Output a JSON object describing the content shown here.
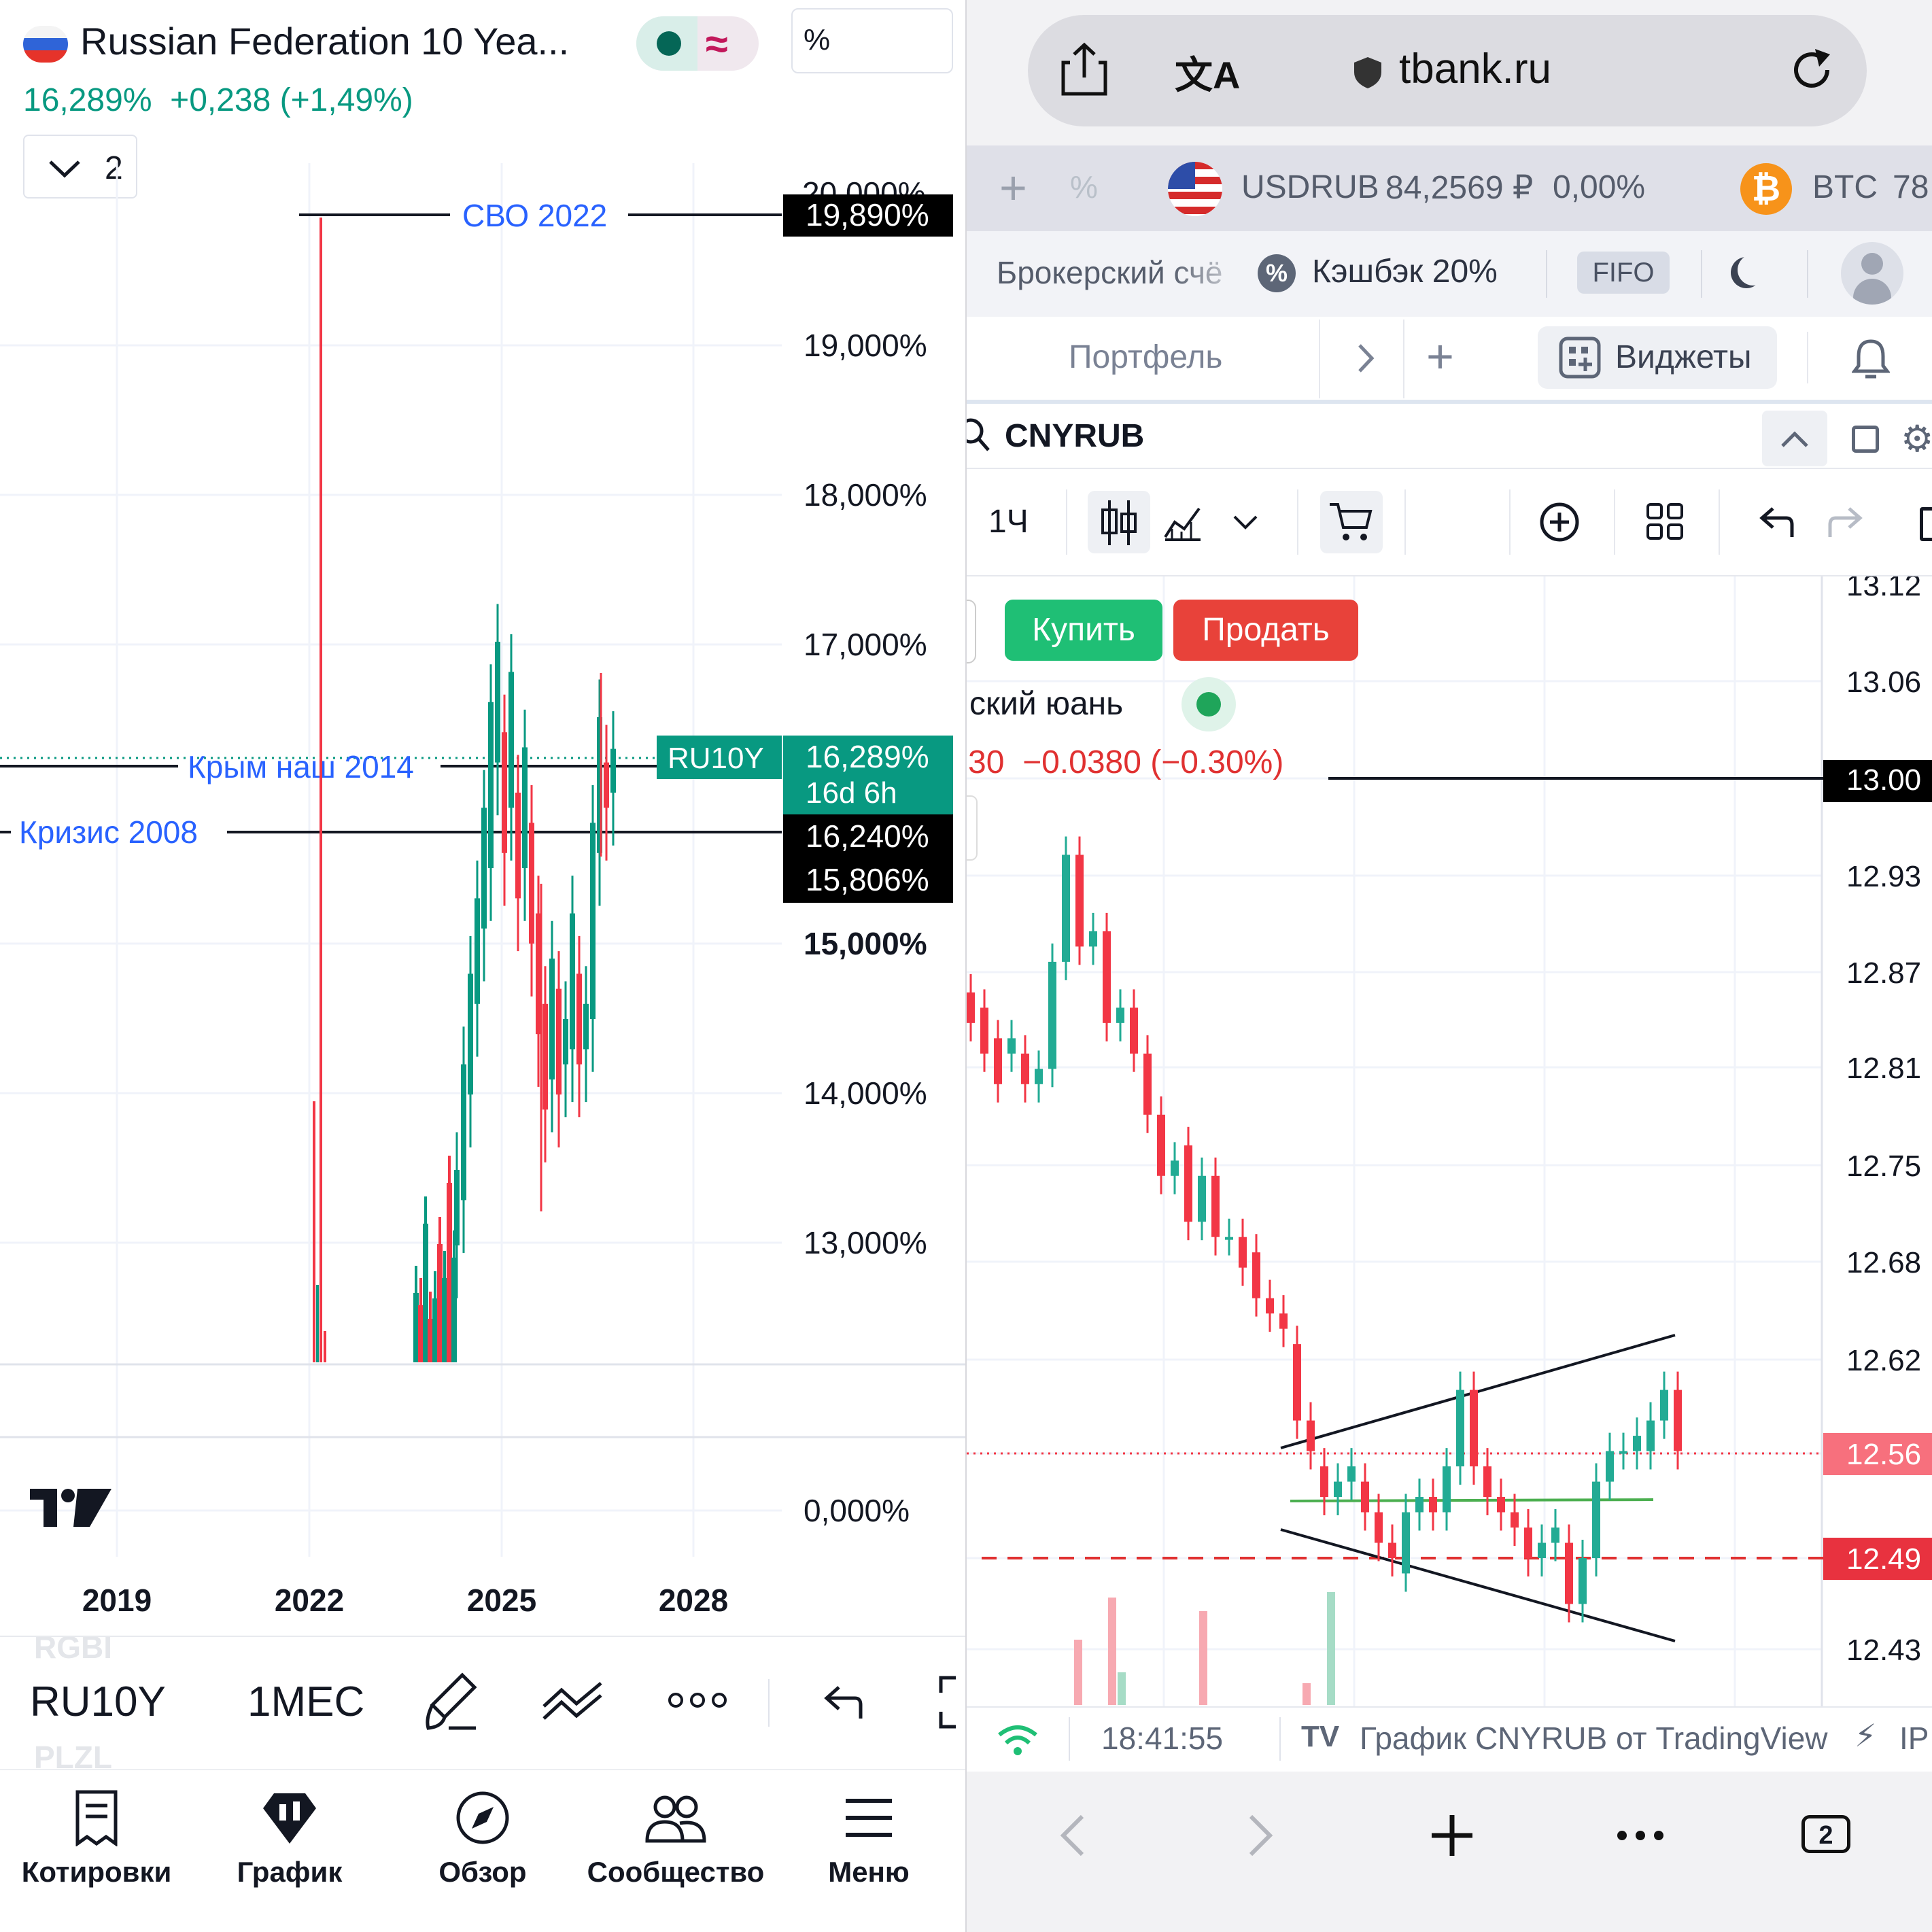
{
  "left": {
    "header": {
      "symbol_name": "Russian Federation 10 Yea...",
      "price_line": "16,289%  +0,238 (+1,49%)",
      "currency_box": "%",
      "interval_count": "2"
    },
    "y_axis_ticks": [
      "19,000%",
      "18,000%",
      "17,000%",
      "15,000%",
      "14,000%",
      "13,000%",
      "0,000%"
    ],
    "y_axis_clipped_top": "20,000%",
    "x_axis_ticks": [
      "2019",
      "2022",
      "2025",
      "2028"
    ],
    "price_tags": {
      "svo": "19,890%",
      "current": "16,289%",
      "countdown": "16d 6h",
      "crisis": "16,240%",
      "low": "15,806%",
      "symbol_tag": "RU10Y"
    },
    "annotations": {
      "svo": "СВО 2022",
      "crimea": "Крым наш 2014",
      "crisis": "Кризис 2008"
    },
    "chart_data": {
      "type": "candlestick",
      "title": "Russian Federation 10 Year",
      "x_ticks": [
        "2019",
        "2022",
        "2025",
        "2028"
      ],
      "y_ticks": [
        "0,000%",
        "13,000%",
        "14,000%",
        "15,000%",
        "17,000%",
        "18,000%",
        "19,000%"
      ],
      "last_value": 16.289,
      "horizontal_lines": [
        {
          "label": "СВО 2022",
          "value": 19.89
        },
        {
          "label": "Крым наш 2014",
          "value": 16.289
        },
        {
          "label": "Кризис 2008",
          "value": 16.24
        }
      ],
      "levels": [
        19.89,
        16.289,
        16.24,
        15.806
      ],
      "grid": true
    },
    "toolbar": {
      "symbol": "RU10Y",
      "interval": "1МЕС",
      "ghost_above": "RGBI",
      "ghost_below": "PLZL"
    },
    "tabbar": {
      "items": [
        {
          "label": "Котировки",
          "icon": "quotes-icon"
        },
        {
          "label": "График",
          "icon": "chart-icon"
        },
        {
          "label": "Обзор",
          "icon": "compass-icon"
        },
        {
          "label": "Сообщество",
          "icon": "community-icon"
        },
        {
          "label": "Меню",
          "icon": "menu-icon"
        }
      ]
    },
    "colors": {
      "up": "#089981",
      "down": "#f23645",
      "label_blue": "#2962ff"
    }
  },
  "right": {
    "browser": {
      "url": "tbank.ru"
    },
    "ticker_bar": {
      "usd_symbol": "USDRUB",
      "usd_price": "84,2569 ₽",
      "usd_change": "0,00%",
      "btc_symbol": "BTC",
      "btc_price": "78"
    },
    "account_bar": {
      "account": "Брокерский счё",
      "cashback": "Кэшбэк 20%",
      "fifo": "FIFO"
    },
    "nav": {
      "portfolio": "Портфель",
      "widgets": "Виджеты"
    },
    "search": {
      "value": "CNYRUB"
    },
    "chart_toolbar": {
      "interval": "1Ч"
    },
    "trade": {
      "buy": "Купить",
      "sell": "Продать"
    },
    "legend": {
      "name": "ский юань",
      "change": "30  −0.0380 (−0.30%)"
    },
    "y_axis_ticks": [
      "13.12",
      "13.06",
      "12.93",
      "12.87",
      "12.81",
      "12.75",
      "12.68",
      "12.62",
      "12.43"
    ],
    "price_tags": {
      "line": "13.00",
      "current": "12.56",
      "support": "12.49"
    },
    "chart_data": {
      "type": "candlestick",
      "title": "CNYRUB",
      "interval": "1Ч",
      "y_ticks": [
        "12.43",
        "12.49",
        "12.56",
        "12.62",
        "12.68",
        "12.75",
        "12.81",
        "12.87",
        "12.93",
        "13.00",
        "13.06",
        "13.12"
      ],
      "last_value": 12.56,
      "levels": [
        13.0,
        12.56,
        12.49
      ],
      "change": "−0.0380 (−0.30%)",
      "grid": true
    },
    "footer": {
      "time": "18:41:55",
      "source": "График CNYRUB от TradingView",
      "extra": "IP"
    },
    "browser_nav": {
      "tabs_count": "2"
    },
    "colors": {
      "up": "#22ab94",
      "down": "#f23645",
      "buy": "#1fbf75",
      "sell": "#e8423a"
    }
  }
}
